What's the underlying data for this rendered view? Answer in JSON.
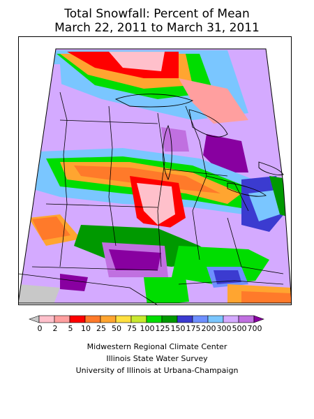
{
  "header": {
    "title_line1": "Total Snowfall: Percent of Mean",
    "title_line2": "March 22, 2011 to March 31, 2011"
  },
  "legend": {
    "labels": [
      "0",
      "2",
      "5",
      "10",
      "25",
      "50",
      "75",
      "100",
      "125",
      "150",
      "175",
      "200",
      "300",
      "500",
      "700"
    ],
    "colors": [
      "#c8c8c8",
      "#ffc0cb",
      "#ff9f9f",
      "#ff0000",
      "#ff7a2a",
      "#ffa530",
      "#ffe040",
      "#c8e830",
      "#00dd00",
      "#009900",
      "#3b3bd0",
      "#6e8fff",
      "#7ac6ff",
      "#d4aaff",
      "#c070e0",
      "#8800a0"
    ]
  },
  "credits": {
    "line1": "Midwestern Regional Climate Center",
    "line2": "Illinois State Water Survey",
    "line3": "University of Illinois at Urbana-Champaign"
  },
  "map": {
    "background_color": "#c8c8c8",
    "outline_color": "#000000"
  }
}
